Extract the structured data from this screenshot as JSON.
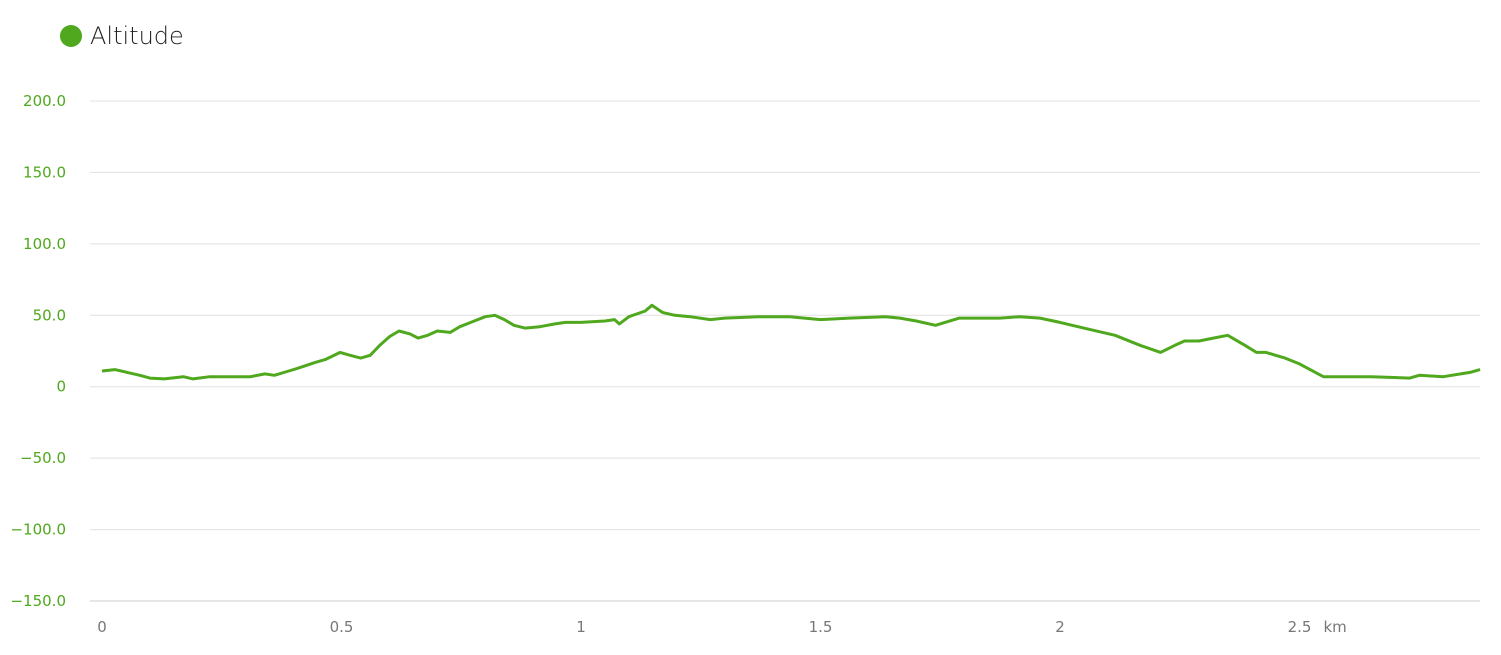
{
  "chart_data": {
    "type": "line",
    "title": "",
    "xlabel": "km",
    "ylabel": "",
    "xlim": [
      0,
      2.877
    ],
    "ylim": [
      -150,
      200
    ],
    "grid": true,
    "legend_placement": "top-left",
    "y_ticks": [
      200,
      150,
      100,
      50,
      0,
      -50,
      -100,
      -150
    ],
    "y_tick_labels": [
      "200.0",
      "150.0",
      "100.0",
      "50.0",
      "0",
      "-50.0",
      "-100.0",
      "-150.0"
    ],
    "x_ticks": [
      0,
      0.5,
      1,
      1.5,
      2,
      2.5
    ],
    "x_tick_labels": [
      "0",
      "0.5",
      "1",
      "1.5",
      "2",
      "2.5"
    ],
    "series": [
      {
        "name": "Altitude",
        "color": "#4fa81d",
        "x": [
          0,
          0.027,
          0.079,
          0.1,
          0.13,
          0.17,
          0.19,
          0.225,
          0.31,
          0.34,
          0.36,
          0.39,
          0.41,
          0.445,
          0.466,
          0.497,
          0.518,
          0.54,
          0.56,
          0.58,
          0.6,
          0.62,
          0.643,
          0.66,
          0.68,
          0.7,
          0.727,
          0.747,
          0.77,
          0.8,
          0.82,
          0.84,
          0.86,
          0.883,
          0.914,
          0.946,
          0.967,
          1.0,
          1.05,
          1.07,
          1.08,
          1.1,
          1.134,
          1.148,
          1.17,
          1.196,
          1.228,
          1.27,
          1.3,
          1.37,
          1.436,
          1.5,
          1.56,
          1.635,
          1.666,
          1.7,
          1.74,
          1.76,
          1.79,
          1.875,
          1.916,
          1.958,
          2.0,
          2.063,
          2.115,
          2.167,
          2.21,
          2.24,
          2.26,
          2.29,
          2.32,
          2.35,
          2.386,
          2.41,
          2.43,
          2.45,
          2.47,
          2.5,
          2.55,
          2.65,
          2.73,
          2.75,
          2.8,
          2.856,
          2.877
        ],
        "y": [
          11,
          12,
          8,
          6,
          5.5,
          7,
          5.5,
          7,
          7,
          9,
          8,
          11,
          13,
          17,
          19,
          24,
          22,
          20,
          22,
          29,
          35,
          39,
          37,
          34,
          36,
          39,
          38,
          42,
          45,
          49,
          50,
          47,
          43,
          41,
          42,
          44,
          45,
          45,
          46,
          47,
          44,
          49,
          53,
          57,
          52,
          50,
          49,
          47,
          48,
          49,
          49,
          47,
          48,
          49,
          48,
          46,
          43,
          45,
          48,
          48,
          49,
          48,
          45,
          40,
          36,
          29,
          24,
          29,
          32,
          32,
          34,
          36,
          29,
          24,
          24,
          22,
          20,
          16,
          7,
          7,
          6,
          8,
          7,
          10,
          12
        ]
      }
    ]
  }
}
